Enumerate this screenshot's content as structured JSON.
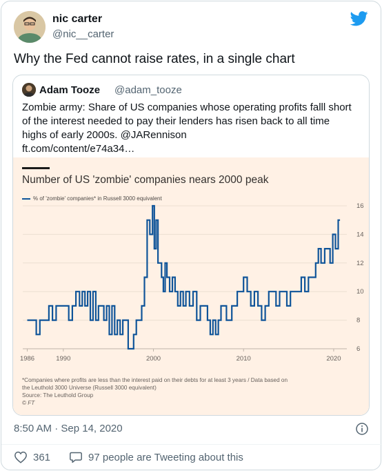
{
  "author": {
    "name": "nic carter",
    "handle": "@nic__carter"
  },
  "tweet": {
    "text": "Why the Fed cannot raise rates, in a single chart"
  },
  "quote": {
    "name": "Adam Tooze",
    "handle": "@adam_tooze",
    "lines": [
      "Zombie army: Share of US companies whose operating profits falll short",
      "of the interest needed to pay their lenders has risen back to all time",
      "highs of early 2000s. @JARennison",
      "ft.com/content/e74a34…"
    ]
  },
  "colors": {
    "ft_background": "#fff1e5",
    "series": "#0f5499",
    "twitter_blue": "#1d9bf0"
  },
  "chart_data": {
    "type": "line",
    "title": "Number of US 'zombie' companies nears 2000 peak",
    "series": [
      {
        "name": "% of 'zombie' companies* in Russell 3000 equivalent",
        "x": [
          1986.0,
          1986.6,
          1987.0,
          1987.4,
          1988.0,
          1988.4,
          1988.8,
          1989.2,
          1989.5,
          1989.8,
          1990.2,
          1990.6,
          1991.0,
          1991.4,
          1991.8,
          1992.1,
          1992.4,
          1992.7,
          1993.0,
          1993.3,
          1993.6,
          1993.9,
          1994.2,
          1994.5,
          1994.8,
          1995.1,
          1995.4,
          1995.7,
          1996.0,
          1996.3,
          1996.6,
          1996.9,
          1997.2,
          1997.5,
          1997.8,
          1998.1,
          1998.4,
          1998.7,
          1999.0,
          1999.3,
          1999.6,
          1999.9,
          2000.1,
          2000.3,
          2000.5,
          2000.7,
          2000.9,
          2001.1,
          2001.3,
          2001.5,
          2001.8,
          2002.1,
          2002.4,
          2002.7,
          2003.0,
          2003.3,
          2003.6,
          2004.0,
          2004.4,
          2004.8,
          2005.2,
          2005.6,
          2006.0,
          2006.3,
          2006.6,
          2006.9,
          2007.2,
          2007.5,
          2007.8,
          2008.1,
          2008.4,
          2008.7,
          2009.0,
          2009.3,
          2009.6,
          2010.0,
          2010.4,
          2010.8,
          2011.2,
          2011.6,
          2012.0,
          2012.4,
          2012.8,
          2013.2,
          2013.6,
          2014.0,
          2014.4,
          2014.8,
          2015.2,
          2015.6,
          2016.0,
          2016.4,
          2016.8,
          2017.2,
          2017.6,
          2018.0,
          2018.3,
          2018.6,
          2019.0,
          2019.3,
          2019.6,
          2019.9,
          2020.2,
          2020.5,
          2020.7
        ],
        "values": [
          8,
          8,
          7,
          8,
          8,
          9,
          8,
          9,
          9,
          9,
          9,
          8,
          9,
          10,
          9,
          10,
          9,
          10,
          8,
          10,
          8,
          9,
          9,
          8,
          9,
          7,
          9,
          7,
          8,
          7,
          8,
          8,
          6,
          6,
          7,
          8,
          8,
          9,
          11,
          15,
          14,
          16,
          13,
          15,
          12,
          12,
          11,
          10,
          12,
          11,
          10,
          11,
          10,
          9,
          10,
          9,
          10,
          9,
          10,
          8,
          9,
          9,
          8,
          7,
          8,
          7,
          8,
          9,
          9,
          8,
          8,
          9,
          9,
          10,
          10,
          11,
          10,
          9,
          10,
          9,
          8,
          9,
          10,
          10,
          9,
          10,
          10,
          9,
          10,
          10,
          10,
          11,
          10,
          11,
          11,
          12,
          13,
          12,
          13,
          13,
          12,
          14,
          13,
          15,
          15
        ],
        "color": "#0f5499"
      }
    ],
    "x_ticks": [
      "1986",
      "1990",
      "2000",
      "2010",
      "2020"
    ],
    "x_tick_values": [
      1986,
      1990,
      2000,
      2010,
      2020
    ],
    "y_ticks": [
      "6",
      "8",
      "10",
      "12",
      "14",
      "16"
    ],
    "y_tick_values": [
      6,
      8,
      10,
      12,
      14,
      16
    ],
    "xlim": [
      1985.5,
      2021.0
    ],
    "ylim": [
      6,
      16
    ],
    "grid": true,
    "legend": "top-left",
    "notes": [
      "*Companies where profits are less than the interest paid on their debts for at least 3 years / Data based on",
      "the Leuthold 3000 Universe (Russell 3000 equivalent)",
      "Source: The Leuthold Group",
      "© FT"
    ]
  },
  "footer": {
    "timestamp": "8:50 AM · Sep 14, 2020",
    "likes": "361",
    "conversation": "97 people are Tweeting about this"
  }
}
